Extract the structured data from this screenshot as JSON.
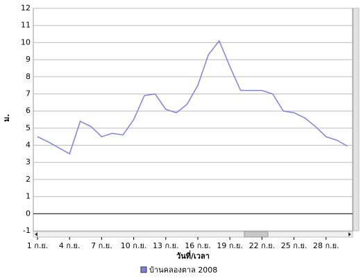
{
  "chart_data": {
    "type": "line",
    "y_label": "ม.",
    "x_label": "วันที่/เวลา",
    "categories": [
      "1 ก.ย.",
      null,
      null,
      "4 ก.ย.",
      null,
      null,
      "7 ก.ย.",
      null,
      null,
      "10 ก.ย.",
      null,
      null,
      "13 ก.ย.",
      null,
      null,
      "16 ก.ย.",
      null,
      null,
      "19 ก.ย.",
      null,
      null,
      "22 ก.ย.",
      null,
      null,
      "25 ก.ย.",
      null,
      null,
      "28 ก.ย.",
      null,
      null
    ],
    "series": [
      {
        "name": "บ้านคลองตาล 2008",
        "color": "#8080e0",
        "values": [
          4.5,
          4.2,
          3.85,
          3.5,
          5.4,
          5.1,
          4.5,
          4.7,
          4.6,
          5.5,
          6.9,
          7.0,
          6.1,
          5.9,
          6.4,
          7.5,
          9.3,
          10.1,
          8.6,
          7.2,
          7.2,
          7.2,
          7.0,
          6.0,
          5.9,
          5.6,
          5.1,
          4.5,
          4.3,
          3.95
        ]
      }
    ],
    "ylim": [
      -1,
      12
    ],
    "yticks": [
      -1,
      0,
      1,
      2,
      3,
      4,
      5,
      6,
      7,
      8,
      9,
      10,
      11,
      12
    ],
    "grid": true
  }
}
